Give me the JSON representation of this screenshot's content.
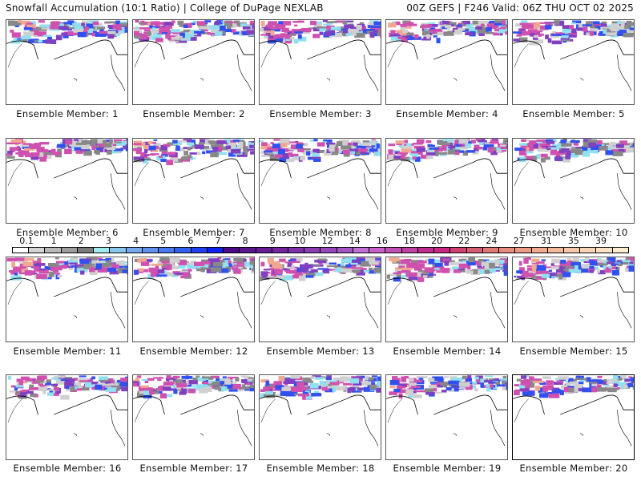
{
  "header": {
    "title_left": "Snowfall Accumulation (10:1 Ratio) | College of DuPage NEXLAB",
    "title_right": "00Z GEFS | F246 Valid: 06Z THU OCT 02 2025"
  },
  "panels": [
    {
      "label": "Ensemble Member: 1",
      "intensity": 0.9
    },
    {
      "label": "Ensemble Member: 2",
      "intensity": 0.8
    },
    {
      "label": "Ensemble Member: 3",
      "intensity": 0.85
    },
    {
      "label": "Ensemble Member: 4",
      "intensity": 0.75
    },
    {
      "label": "Ensemble Member: 5",
      "intensity": 0.9
    },
    {
      "label": "Ensemble Member: 6",
      "intensity": 0.7
    },
    {
      "label": "Ensemble Member: 7",
      "intensity": 0.95
    },
    {
      "label": "Ensemble Member: 8",
      "intensity": 0.85
    },
    {
      "label": "Ensemble Member: 9",
      "intensity": 0.75
    },
    {
      "label": "Ensemble Member: 10",
      "intensity": 0.8
    },
    {
      "label": "Ensemble Member: 11",
      "intensity": 0.85
    },
    {
      "label": "Ensemble Member: 12",
      "intensity": 0.7
    },
    {
      "label": "Ensemble Member: 13",
      "intensity": 0.8
    },
    {
      "label": "Ensemble Member: 14",
      "intensity": 0.85
    },
    {
      "label": "Ensemble Member: 15",
      "intensity": 0.8
    },
    {
      "label": "Ensemble Member: 16",
      "intensity": 0.85
    },
    {
      "label": "Ensemble Member: 17",
      "intensity": 0.8
    },
    {
      "label": "Ensemble Member: 18",
      "intensity": 0.85
    },
    {
      "label": "Ensemble Member: 19",
      "intensity": 0.8
    },
    {
      "label": "Ensemble Member: 20",
      "intensity": 0.75
    }
  ],
  "colorbar": {
    "ticks": [
      "0.1",
      "1",
      "2",
      "3",
      "4",
      "5",
      "6",
      "7",
      "8",
      "9",
      "10",
      "12",
      "14",
      "16",
      "18",
      "20",
      "22",
      "24",
      "27",
      "31",
      "35",
      "39"
    ],
    "colors": [
      "#ffffff",
      "#d4d4d4",
      "#b8b8b8",
      "#9c9c9c",
      "#7a7a7a",
      "#a0ecec",
      "#88c8f0",
      "#78a8f0",
      "#6090f0",
      "#4878f0",
      "#3060f0",
      "#2040f0",
      "#1020f0",
      "#4a0a8a",
      "#5a168e",
      "#661c96",
      "#74249e",
      "#8030a8",
      "#8c3cb2",
      "#9848bc",
      "#a454c4",
      "#c070d4",
      "#c860c8",
      "#c050b4",
      "#c040a4",
      "#c02c90",
      "#c82880",
      "#d04070",
      "#d85c74",
      "#e07878",
      "#e88c80",
      "#ee9c88",
      "#f2aa90",
      "#f4b89c",
      "#f6c8aa",
      "#f8d4b6",
      "#fae2c4",
      "#fcecd0"
    ]
  },
  "map_colors": {
    "gray_light": "#d0d0d0",
    "gray_dark": "#888888",
    "cyan": "#90e0f0",
    "blue": "#3050f0",
    "purple": "#8040c0",
    "magenta": "#d050b0",
    "peach": "#f0a890"
  }
}
